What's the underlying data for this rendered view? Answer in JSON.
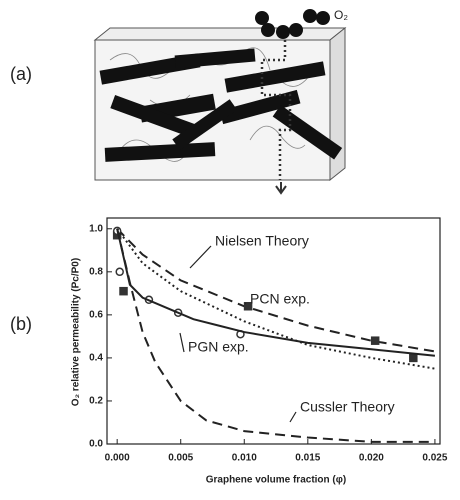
{
  "panels": {
    "a": {
      "label": "(a)",
      "molecule_label": "O₂"
    },
    "b": {
      "label": "(b)"
    }
  },
  "chart_data": {
    "type": "line",
    "x_label": "Graphene volume fraction (φ)",
    "y_label": "O₂ relative permeability (Pc/P0)",
    "xlim": [
      -0.0008,
      0.0254
    ],
    "ylim": [
      0,
      1.05
    ],
    "xticks": [
      {
        "value": 0,
        "label": "0.000"
      },
      0.005,
      {
        "value": 0.01,
        "label": "0.010"
      },
      0.015,
      {
        "value": 0.02,
        "label": "0.020"
      },
      0.025
    ],
    "yticks": [
      {
        "value": 0,
        "label": "0.0"
      },
      0.2,
      0.4,
      0.6,
      0.8,
      {
        "value": 1,
        "label": "1.0"
      }
    ],
    "series": [
      {
        "name": "Nielsen Theory",
        "color": "#222",
        "style": "dashed",
        "x": [
          0,
          0.002,
          0.005,
          0.01,
          0.015,
          0.02,
          0.025
        ],
        "values": [
          1.0,
          0.88,
          0.76,
          0.64,
          0.55,
          0.48,
          0.43
        ]
      },
      {
        "name": "PCN exp.",
        "color": "#333",
        "style": "square",
        "x": [
          0,
          0.0005,
          0.0103,
          0.0203,
          0.0233
        ],
        "values": [
          0.97,
          0.71,
          0.64,
          0.48,
          0.4
        ]
      },
      {
        "name": "PGN exp.",
        "color": "#333",
        "style": "circle",
        "x": [
          0,
          0.0002,
          0.0025,
          0.0048,
          0.0097
        ],
        "values": [
          0.99,
          0.8,
          0.67,
          0.61,
          0.51
        ]
      },
      {
        "name": "Cussler Theory",
        "color": "#222",
        "style": "dashed",
        "x": [
          0,
          0.001,
          0.002,
          0.003,
          0.005,
          0.007,
          0.01,
          0.015,
          0.02,
          0.025
        ],
        "values": [
          1.0,
          0.75,
          0.52,
          0.38,
          0.2,
          0.11,
          0.06,
          0.03,
          0.01,
          0.01
        ]
      },
      {
        "color": "#222",
        "style": "solid",
        "x": [
          0,
          0.001,
          0.002,
          0.004,
          0.006,
          0.008,
          0.01,
          0.015,
          0.02,
          0.025
        ],
        "values": [
          1.0,
          0.74,
          0.68,
          0.63,
          0.58,
          0.55,
          0.52,
          0.47,
          0.44,
          0.41
        ]
      },
      {
        "color": "#222",
        "style": "dotted",
        "x": [
          0,
          0.002,
          0.005,
          0.01,
          0.015,
          0.02,
          0.025
        ],
        "values": [
          1.0,
          0.84,
          0.71,
          0.57,
          0.46,
          0.4,
          0.35
        ]
      }
    ]
  }
}
